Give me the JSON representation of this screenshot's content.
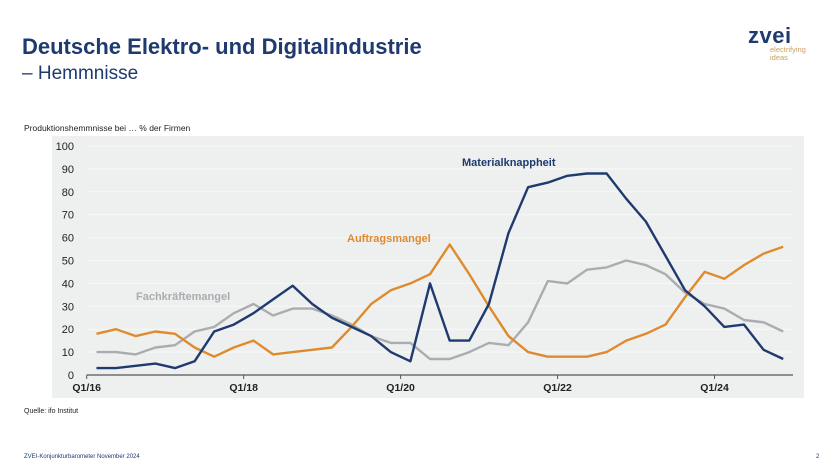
{
  "header": {
    "title": "Deutsche Elektro- und Digitalindustrie",
    "subtitle": "– Hemmnisse"
  },
  "logo": {
    "word": "zvei",
    "tagline1": "electrifying",
    "tagline2": "ideas"
  },
  "footer": {
    "text": "ZVEI-Konjunkturbarometer November 2024",
    "page": "2",
    "source": "Quelle: ifo Institut"
  },
  "chart_data": {
    "type": "line",
    "title": "",
    "ylabel": "Produktionshemmnisse bei … % der Firmen",
    "xlabel": "",
    "ylim": [
      0,
      100
    ],
    "yticks": [
      0,
      10,
      20,
      30,
      40,
      50,
      60,
      70,
      80,
      90,
      100
    ],
    "x_tick_labels": [
      "Q1/16",
      "Q1/18",
      "Q1/20",
      "Q1/22",
      "Q1/24"
    ],
    "x": [
      "Q1/16",
      "Q2/16",
      "Q3/16",
      "Q4/16",
      "Q1/17",
      "Q2/17",
      "Q3/17",
      "Q4/17",
      "Q1/18",
      "Q2/18",
      "Q3/18",
      "Q4/18",
      "Q1/19",
      "Q2/19",
      "Q3/19",
      "Q4/19",
      "Q1/20",
      "Q2/20",
      "Q3/20",
      "Q4/20",
      "Q1/21",
      "Q2/21",
      "Q3/21",
      "Q4/21",
      "Q1/22",
      "Q2/22",
      "Q3/22",
      "Q4/22",
      "Q1/23",
      "Q2/23",
      "Q3/23",
      "Q4/23",
      "Q1/24",
      "Q2/24",
      "Q3/24",
      "Q4/24"
    ],
    "grid": true,
    "series": [
      {
        "name": "Materialknappheit",
        "color": "#1f3a6e",
        "values": [
          3,
          3,
          4,
          5,
          3,
          6,
          19,
          22,
          27,
          33,
          39,
          31,
          25,
          21,
          17,
          10,
          6,
          40,
          15,
          15,
          31,
          62,
          82,
          84,
          87,
          88,
          88,
          77,
          67,
          52,
          37,
          30,
          21,
          22,
          11,
          7
        ]
      },
      {
        "name": "Auftragsmangel",
        "color": "#e08a2e",
        "values": [
          18,
          20,
          17,
          19,
          18,
          12,
          8,
          12,
          15,
          9,
          10,
          11,
          12,
          21,
          31,
          37,
          40,
          44,
          57,
          44,
          30,
          17,
          10,
          8,
          8,
          8,
          10,
          15,
          18,
          22,
          34,
          45,
          42,
          48,
          53,
          56
        ]
      },
      {
        "name": "Fachkräftemangel",
        "color": "#a9adb0",
        "values": [
          10,
          10,
          9,
          12,
          13,
          19,
          21,
          27,
          31,
          26,
          29,
          29,
          26,
          22,
          17,
          14,
          14,
          7,
          7,
          10,
          14,
          13,
          23,
          41,
          40,
          46,
          47,
          50,
          48,
          44,
          36,
          31,
          29,
          24,
          23,
          19
        ]
      }
    ]
  }
}
